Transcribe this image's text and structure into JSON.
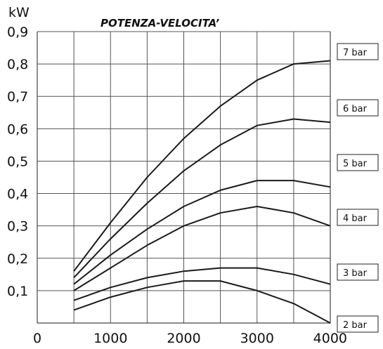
{
  "chart_data": {
    "type": "line",
    "title": "POTENZA-VELOCITA’",
    "ylabel": "kW",
    "xlabel": "",
    "xlim": [
      0,
      4000
    ],
    "ylim": [
      0,
      0.9
    ],
    "xticks": [
      0,
      1000,
      2000,
      3000,
      4000
    ],
    "xtick_labels": [
      "0",
      "1000",
      "2000",
      "3000",
      "4000"
    ],
    "yticks": [
      0.1,
      0.2,
      0.3,
      0.4,
      0.5,
      0.6,
      0.7,
      0.8,
      0.9
    ],
    "ytick_labels": [
      "0,1",
      "0,2",
      "0,3",
      "0,4",
      "0,5",
      "0,6",
      "0,7",
      "0,8",
      "0,9"
    ],
    "grid": true,
    "legend_position": "right",
    "x": [
      500,
      1000,
      1500,
      2000,
      2500,
      3000,
      3500,
      4000
    ],
    "series": [
      {
        "name": "7 bar",
        "values": [
          0.16,
          0.31,
          0.45,
          0.57,
          0.67,
          0.75,
          0.8,
          0.81
        ]
      },
      {
        "name": "6 bar",
        "values": [
          0.14,
          0.26,
          0.37,
          0.47,
          0.55,
          0.61,
          0.63,
          0.62
        ]
      },
      {
        "name": "5 bar",
        "values": [
          0.12,
          0.21,
          0.29,
          0.36,
          0.41,
          0.44,
          0.44,
          0.42
        ]
      },
      {
        "name": "4 bar",
        "values": [
          0.1,
          0.17,
          0.24,
          0.3,
          0.34,
          0.36,
          0.34,
          0.3
        ]
      },
      {
        "name": "3 bar",
        "values": [
          0.07,
          0.11,
          0.14,
          0.16,
          0.17,
          0.17,
          0.15,
          0.12
        ]
      },
      {
        "name": "2 bar",
        "values": [
          0.04,
          0.08,
          0.11,
          0.13,
          0.13,
          0.1,
          0.06,
          0.0
        ]
      }
    ]
  }
}
